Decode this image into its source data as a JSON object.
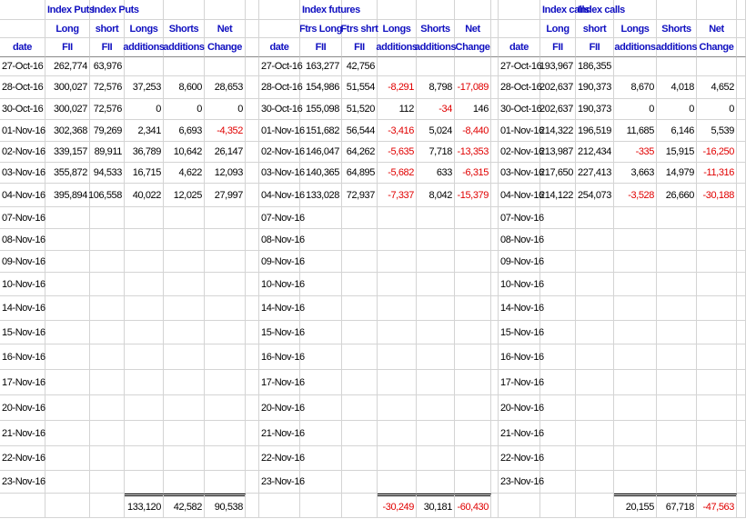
{
  "blocks": [
    {
      "titles": [
        "Index Puts",
        "Index Puts"
      ],
      "header2": [
        "Long",
        "short",
        "Longs",
        "Shorts",
        "Net"
      ],
      "header3": [
        "date",
        "FII",
        "FII",
        "additions",
        "additions",
        "Change"
      ],
      "rows": [
        {
          "date": "27-Oct-16",
          "values": [
            "262,774",
            "63,976"
          ]
        },
        {
          "date": "28-Oct-16",
          "values": [
            "300,027",
            "72,576",
            "37,253",
            "8,600",
            "28,653"
          ]
        },
        {
          "date": "30-Oct-16",
          "values": [
            "300,027",
            "72,576",
            "0",
            "0",
            "0"
          ]
        },
        {
          "date": "01-Nov-16",
          "values": [
            "302,368",
            "79,269",
            "2,341",
            "6,693",
            "-4,352"
          ]
        },
        {
          "date": "02-Nov-16",
          "values": [
            "339,157",
            "89,911",
            "36,789",
            "10,642",
            "26,147"
          ]
        },
        {
          "date": "03-Nov-16",
          "values": [
            "355,872",
            "94,533",
            "16,715",
            "4,622",
            "12,093"
          ]
        },
        {
          "date": "04-Nov-16",
          "values": [
            "395,894",
            "106,558",
            "40,022",
            "12,025",
            "27,997"
          ]
        },
        {
          "date": "07-Nov-16"
        },
        {
          "date": "08-Nov-16"
        },
        {
          "date": "09-Nov-16"
        },
        {
          "date": "10-Nov-16"
        },
        {
          "date": "14-Nov-16"
        },
        {
          "date": "15-Nov-16"
        },
        {
          "date": "16-Nov-16"
        },
        {
          "date": "17-Nov-16"
        },
        {
          "date": "20-Nov-16"
        },
        {
          "date": "21-Nov-16"
        },
        {
          "date": "22-Nov-16"
        },
        {
          "date": "23-Nov-16"
        }
      ],
      "totals": [
        "133,120",
        "42,582",
        "90,538"
      ]
    },
    {
      "titles": [
        "Index futures"
      ],
      "header2": [
        "Ftrs Long",
        "Ftrs shrt",
        "Longs",
        "Shorts",
        "Net"
      ],
      "header3": [
        "date",
        "FII",
        "FII",
        "additions",
        "additions",
        "Change"
      ],
      "rows": [
        {
          "date": "27-Oct-16",
          "values": [
            "163,277",
            "42,756"
          ]
        },
        {
          "date": "28-Oct-16",
          "values": [
            "154,986",
            "51,554",
            "-8,291",
            "8,798",
            "-17,089"
          ]
        },
        {
          "date": "30-Oct-16",
          "values": [
            "155,098",
            "51,520",
            "112",
            "-34",
            "146"
          ]
        },
        {
          "date": "01-Nov-16",
          "values": [
            "151,682",
            "56,544",
            "-3,416",
            "5,024",
            "-8,440"
          ]
        },
        {
          "date": "02-Nov-16",
          "values": [
            "146,047",
            "64,262",
            "-5,635",
            "7,718",
            "-13,353"
          ]
        },
        {
          "date": "03-Nov-16",
          "values": [
            "140,365",
            "64,895",
            "-5,682",
            "633",
            "-6,315"
          ]
        },
        {
          "date": "04-Nov-16",
          "values": [
            "133,028",
            "72,937",
            "-7,337",
            "8,042",
            "-15,379"
          ]
        },
        {
          "date": "07-Nov-16"
        },
        {
          "date": "08-Nov-16"
        },
        {
          "date": "09-Nov-16"
        },
        {
          "date": "10-Nov-16"
        },
        {
          "date": "14-Nov-16"
        },
        {
          "date": "15-Nov-16"
        },
        {
          "date": "16-Nov-16"
        },
        {
          "date": "17-Nov-16"
        },
        {
          "date": "20-Nov-16"
        },
        {
          "date": "21-Nov-16"
        },
        {
          "date": "22-Nov-16"
        },
        {
          "date": "23-Nov-16"
        }
      ],
      "totals": [
        "-30,249",
        "30,181",
        "-60,430"
      ]
    },
    {
      "titles": [
        "Index calls",
        "Index calls"
      ],
      "header2": [
        "Long",
        "short",
        "Longs",
        "Shorts",
        "Net"
      ],
      "header3": [
        "date",
        "FII",
        "FII",
        "additions",
        "additions",
        "Change"
      ],
      "rows": [
        {
          "date": "27-Oct-16",
          "values": [
            "193,967",
            "186,355"
          ]
        },
        {
          "date": "28-Oct-16",
          "values": [
            "202,637",
            "190,373",
            "8,670",
            "4,018",
            "4,652"
          ]
        },
        {
          "date": "30-Oct-16",
          "values": [
            "202,637",
            "190,373",
            "0",
            "0",
            "0"
          ]
        },
        {
          "date": "01-Nov-16",
          "values": [
            "214,322",
            "196,519",
            "11,685",
            "6,146",
            "5,539"
          ]
        },
        {
          "date": "02-Nov-16",
          "values": [
            "213,987",
            "212,434",
            "-335",
            "15,915",
            "-16,250"
          ]
        },
        {
          "date": "03-Nov-16",
          "values": [
            "217,650",
            "227,413",
            "3,663",
            "14,979",
            "-11,316"
          ]
        },
        {
          "date": "04-Nov-16",
          "values": [
            "214,122",
            "254,073",
            "-3,528",
            "26,660",
            "-30,188"
          ]
        },
        {
          "date": "07-Nov-16"
        },
        {
          "date": "08-Nov-16"
        },
        {
          "date": "09-Nov-16"
        },
        {
          "date": "10-Nov-16"
        },
        {
          "date": "14-Nov-16"
        },
        {
          "date": "15-Nov-16"
        },
        {
          "date": "16-Nov-16"
        },
        {
          "date": "17-Nov-16"
        },
        {
          "date": "20-Nov-16"
        },
        {
          "date": "21-Nov-16"
        },
        {
          "date": "22-Nov-16"
        },
        {
          "date": "23-Nov-16"
        }
      ],
      "totals": [
        "20,155",
        "67,718",
        "-47,563"
      ]
    }
  ]
}
